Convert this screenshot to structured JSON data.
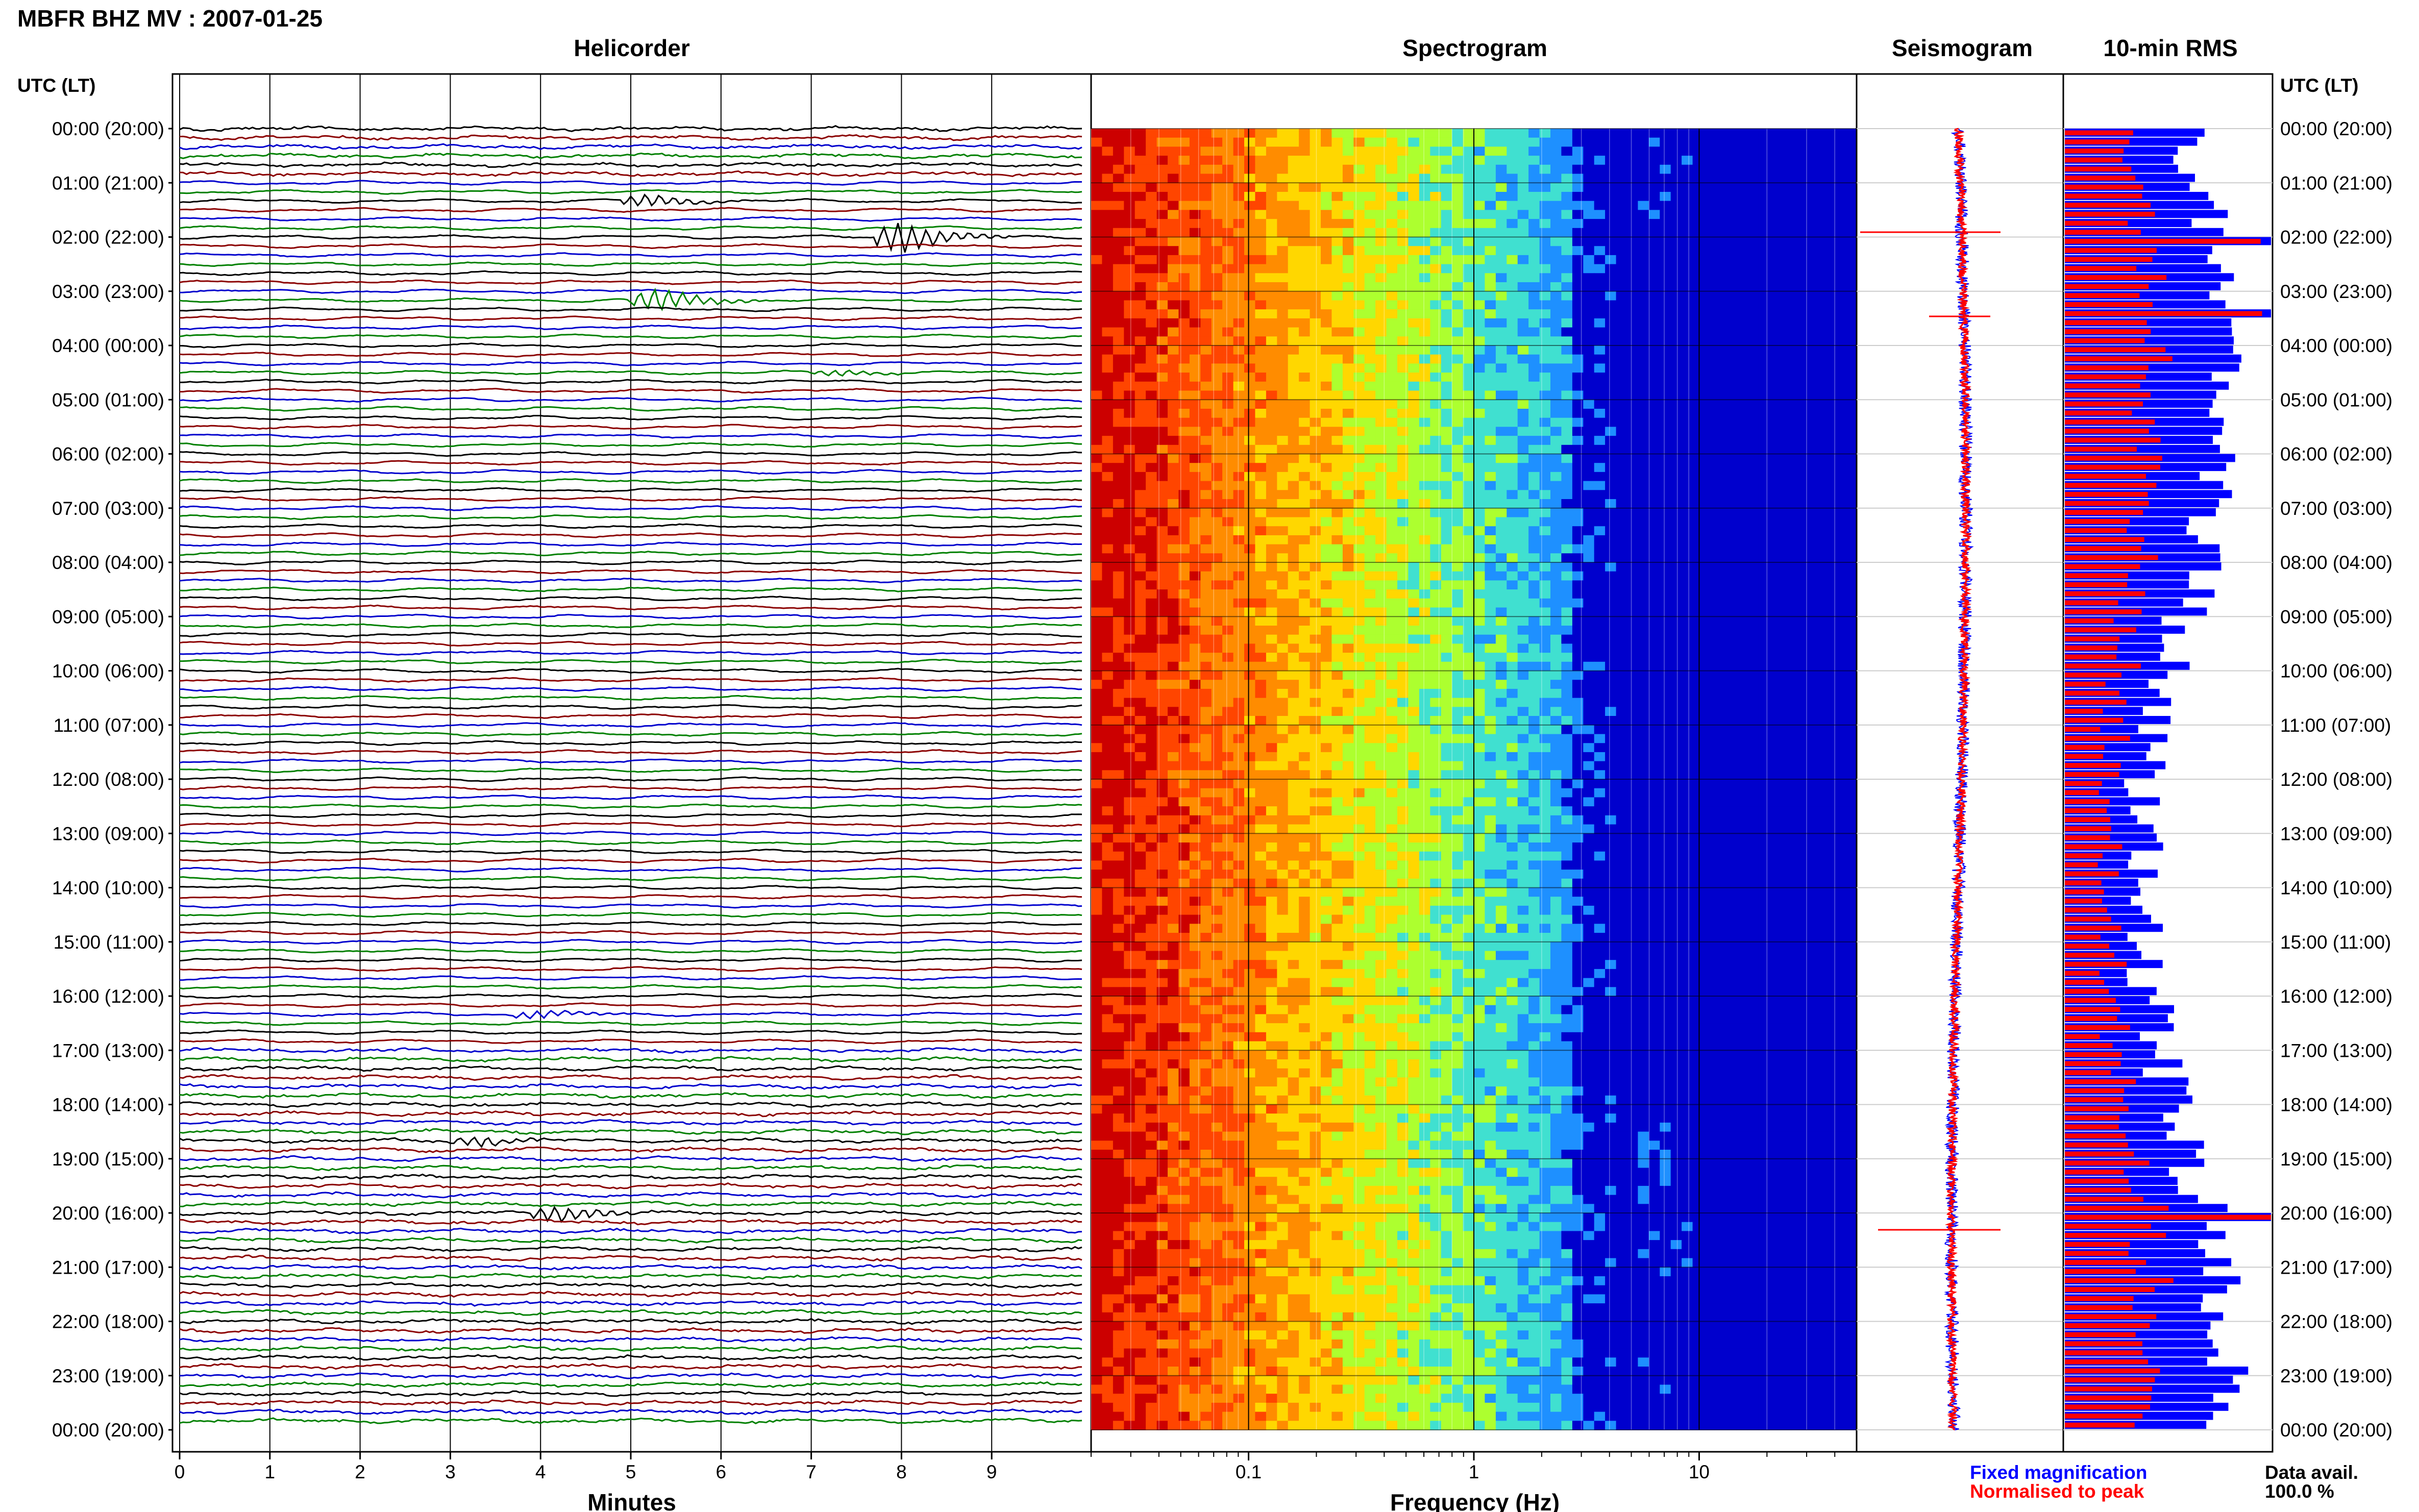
{
  "header": {
    "title": "MBFR BHZ MV : 2007-01-25"
  },
  "time_axis": {
    "heading": "UTC (LT)",
    "labels": [
      "00:00 (20:00)",
      "01:00 (21:00)",
      "02:00 (22:00)",
      "03:00 (23:00)",
      "04:00 (00:00)",
      "05:00 (01:00)",
      "06:00 (02:00)",
      "07:00 (03:00)",
      "08:00 (04:00)",
      "09:00 (05:00)",
      "10:00 (06:00)",
      "11:00 (07:00)",
      "12:00 (08:00)",
      "13:00 (09:00)",
      "14:00 (10:00)",
      "15:00 (11:00)",
      "16:00 (12:00)",
      "17:00 (13:00)",
      "18:00 (14:00)",
      "19:00 (15:00)",
      "20:00 (16:00)",
      "21:00 (17:00)",
      "22:00 (18:00)",
      "23:00 (19:00)",
      "00:00 (20:00)"
    ]
  },
  "legend": {
    "fixed": "Fixed magnification",
    "normalised": "Normalised to peak",
    "data_avail_label": "Data avail.",
    "data_avail_value": "100.0 %"
  },
  "colors": {
    "trace_cycle": [
      "#000000",
      "#8b0000",
      "#0000cd",
      "#008000"
    ],
    "fixed": "#0000ff",
    "normalised": "#ff0000",
    "grid": "#000000"
  },
  "chart_data": [
    {
      "type": "line",
      "title": "Helicorder",
      "xlabel": "Minutes",
      "x_ticks": [
        "0",
        "1",
        "2",
        "3",
        "4",
        "5",
        "6",
        "7",
        "8",
        "9"
      ],
      "xlim": [
        0,
        10
      ],
      "rows_per_hour": 6,
      "rows": 144,
      "events": [
        {
          "row": 8,
          "minute": 5.2,
          "amp": 12
        },
        {
          "row": 12,
          "minute": 8.0,
          "amp": 30
        },
        {
          "row": 19,
          "minute": 5.3,
          "amp": 22
        },
        {
          "row": 27,
          "minute": 7.3,
          "amp": 6
        },
        {
          "row": 98,
          "minute": 4.0,
          "amp": 8
        },
        {
          "row": 112,
          "minute": 3.3,
          "amp": 10
        },
        {
          "row": 120,
          "minute": 4.2,
          "amp": 16
        }
      ]
    },
    {
      "type": "heatmap",
      "title": "Spectrogram",
      "xlabel": "Frequency (Hz)",
      "x_scale": "log",
      "x_ticks": [
        "0.1",
        "1",
        "10"
      ],
      "xlim": [
        0.02,
        50
      ],
      "colormap": [
        "#cc0000",
        "#ff4500",
        "#ff8c00",
        "#ffd700",
        "#adff2f",
        "#40e0d0",
        "#1e90ff",
        "#0000cd"
      ]
    },
    {
      "type": "line",
      "title": "Seismogram",
      "series": [
        "Fixed magnification",
        "Normalised to peak"
      ]
    },
    {
      "type": "bar",
      "title": "10-min RMS",
      "orientation": "horizontal",
      "bins": 144,
      "series": [
        "Fixed magnification",
        "Normalised to peak"
      ],
      "peak_rows": [
        12,
        20,
        120
      ]
    }
  ]
}
